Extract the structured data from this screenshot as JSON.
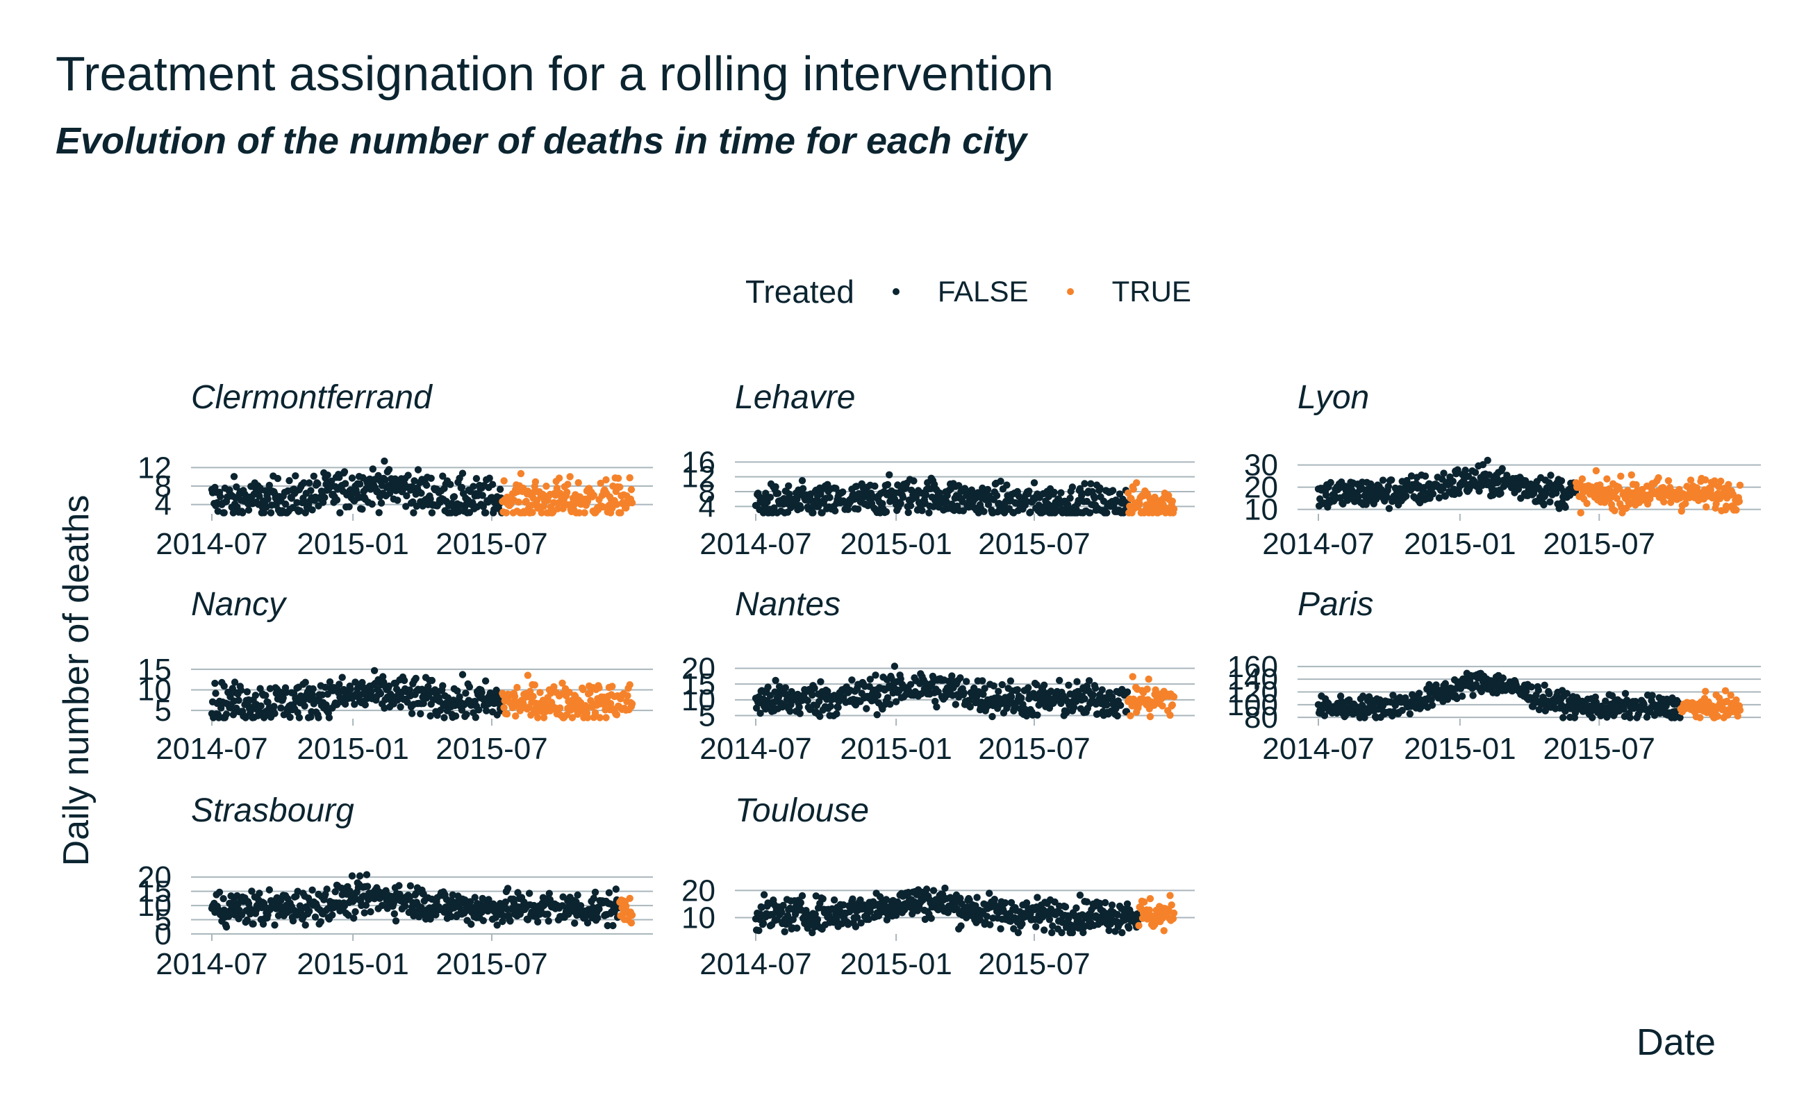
{
  "title": "Treatment assignation for a rolling intervention",
  "subtitle": "Evolution of the number of deaths in time for each city",
  "legend": {
    "title": "Treated",
    "items": [
      {
        "label": "FALSE",
        "color": "#0b2430"
      },
      {
        "label": "TRUE",
        "color": "#f5822a"
      }
    ]
  },
  "axes": {
    "xlabel": "Date",
    "ylabel": "Daily number of deaths",
    "x_ticks": [
      "2014-07",
      "2015-01",
      "2015-07"
    ]
  },
  "chart_data": {
    "type": "scatter",
    "facet_by": "city",
    "x_range": [
      "2014-07-01",
      "2015-12-31"
    ],
    "grid": true,
    "legend_position": "top",
    "facets": [
      {
        "name": "Clermontferrand",
        "y_ticks": [
          4,
          8,
          12
        ],
        "y_tick_labels": [
          "4",
          "8",
          "12"
        ],
        "ylim": [
          2,
          14
        ],
        "mean_start": 5,
        "mean_peak": 8,
        "noise": 2.2,
        "treated_from": "2015-07-15"
      },
      {
        "name": "Lehavre",
        "y_ticks": [
          4,
          8,
          12,
          16
        ],
        "y_tick_labels": [
          "4",
          "8",
          "12",
          "16"
        ],
        "ylim": [
          2,
          17
        ],
        "mean_start": 5,
        "mean_peak": 7,
        "noise": 2.4,
        "treated_from": "2015-11-01"
      },
      {
        "name": "Lyon",
        "y_ticks": [
          10,
          20,
          30
        ],
        "y_tick_labels": [
          "10",
          "20",
          "30"
        ],
        "ylim": [
          8,
          33
        ],
        "mean_start": 17,
        "mean_peak": 23,
        "noise": 3.5,
        "treated_from": "2015-06-01"
      },
      {
        "name": "Nancy",
        "y_ticks": [
          5,
          10,
          15
        ],
        "y_tick_labels": [
          "5",
          "10",
          "15"
        ],
        "ylim": [
          3,
          16
        ],
        "mean_start": 7,
        "mean_peak": 9,
        "noise": 2.3,
        "treated_from": "2015-07-15"
      },
      {
        "name": "Nantes",
        "y_ticks": [
          5,
          10,
          15,
          20
        ],
        "y_tick_labels": [
          "5",
          "10",
          "15",
          "20"
        ],
        "ylim": [
          4,
          21
        ],
        "mean_start": 10,
        "mean_peak": 14,
        "noise": 2.8,
        "treated_from": "2015-11-01"
      },
      {
        "name": "Paris",
        "y_ticks": [
          80,
          100,
          120,
          140,
          160
        ],
        "y_tick_labels": [
          "80",
          "100",
          "120",
          "140",
          "160"
        ],
        "ylim": [
          78,
          162
        ],
        "mean_start": 95,
        "mean_peak": 135,
        "noise": 9,
        "treated_from": "2015-10-15"
      },
      {
        "name": "Strasbourg",
        "y_ticks": [
          0,
          5,
          10,
          15,
          20
        ],
        "y_tick_labels": [
          "0",
          "5",
          "10",
          "15",
          "20"
        ],
        "ylim": [
          0,
          22
        ],
        "mean_start": 9,
        "mean_peak": 13,
        "noise": 3,
        "treated_from": "2015-12-15"
      },
      {
        "name": "Toulouse",
        "y_ticks": [
          10,
          20
        ],
        "y_tick_labels": [
          "10",
          "20"
        ],
        "ylim": [
          4,
          27
        ],
        "mean_start": 11,
        "mean_peak": 16,
        "noise": 3,
        "treated_from": "2015-11-15"
      }
    ]
  }
}
